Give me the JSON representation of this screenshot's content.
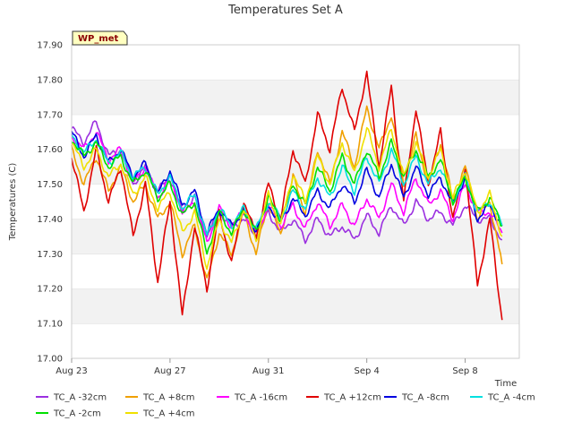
{
  "chart_data": {
    "type": "line",
    "title": "Temperatures Set A",
    "xlabel": "Time",
    "ylabel": "Temperatures (C)",
    "ylim": [
      17.0,
      17.9
    ],
    "yticks": [
      17.0,
      17.1,
      17.2,
      17.3,
      17.4,
      17.5,
      17.6,
      17.7,
      17.8,
      17.9
    ],
    "ytick_labels": [
      "17.00",
      "17.10",
      "17.20",
      "17.30",
      "17.40",
      "17.50",
      "17.60",
      "17.70",
      "17.80",
      "17.90"
    ],
    "xlim": [
      0,
      18.2
    ],
    "xticks": [
      0,
      4,
      8,
      12,
      16
    ],
    "xtick_labels": [
      "Aug 23",
      "Aug 27",
      "Aug 31",
      "Sep 4",
      "Sep 8"
    ],
    "grid": "horizontal bands",
    "badge": "WP_met",
    "legend_position": "bottom",
    "x": [
      0,
      0.5,
      1,
      1.5,
      2,
      2.5,
      3,
      3.5,
      4,
      4.5,
      5,
      5.5,
      6,
      6.5,
      7,
      7.5,
      8,
      8.5,
      9,
      9.5,
      10,
      10.5,
      11,
      11.5,
      12,
      12.5,
      13,
      13.5,
      14,
      14.5,
      15,
      15.5,
      16,
      16.5,
      17,
      17.5
    ],
    "series": [
      {
        "name": "TC_A -32cm",
        "color": "#9b30e0",
        "values": [
          17.66,
          17.62,
          17.68,
          17.58,
          17.6,
          17.5,
          17.55,
          17.48,
          17.52,
          17.42,
          17.46,
          17.35,
          17.42,
          17.38,
          17.4,
          17.35,
          17.42,
          17.36,
          17.4,
          17.34,
          17.4,
          17.35,
          17.38,
          17.34,
          17.41,
          17.36,
          17.44,
          17.38,
          17.45,
          17.4,
          17.42,
          17.38,
          17.44,
          17.4,
          17.4,
          17.34
        ]
      },
      {
        "name": "TC_A +8cm",
        "color": "#f0a000",
        "values": [
          17.6,
          17.5,
          17.58,
          17.48,
          17.55,
          17.45,
          17.5,
          17.4,
          17.45,
          17.3,
          17.38,
          17.22,
          17.36,
          17.3,
          17.42,
          17.3,
          17.45,
          17.35,
          17.52,
          17.42,
          17.6,
          17.5,
          17.65,
          17.55,
          17.72,
          17.6,
          17.7,
          17.5,
          17.64,
          17.5,
          17.62,
          17.45,
          17.55,
          17.4,
          17.45,
          17.27
        ]
      },
      {
        "name": "TC_A -16cm",
        "color": "#ff00ff",
        "values": [
          17.64,
          17.6,
          17.65,
          17.57,
          17.6,
          17.5,
          17.55,
          17.46,
          17.52,
          17.42,
          17.45,
          17.33,
          17.43,
          17.38,
          17.42,
          17.36,
          17.44,
          17.38,
          17.44,
          17.37,
          17.45,
          17.38,
          17.44,
          17.38,
          17.46,
          17.4,
          17.5,
          17.42,
          17.52,
          17.44,
          17.48,
          17.4,
          17.5,
          17.42,
          17.42,
          17.36
        ]
      },
      {
        "name": "TC_A +12cm",
        "color": "#e00000",
        "values": [
          17.58,
          17.42,
          17.6,
          17.45,
          17.55,
          17.35,
          17.5,
          17.22,
          17.45,
          17.12,
          17.38,
          17.2,
          17.42,
          17.27,
          17.45,
          17.35,
          17.5,
          17.4,
          17.6,
          17.5,
          17.7,
          17.6,
          17.78,
          17.65,
          17.82,
          17.55,
          17.78,
          17.45,
          17.72,
          17.5,
          17.65,
          17.4,
          17.55,
          17.21,
          17.4,
          17.11
        ]
      },
      {
        "name": "TC_A -8cm",
        "color": "#0000e0",
        "values": [
          17.65,
          17.58,
          17.64,
          17.56,
          17.6,
          17.52,
          17.56,
          17.47,
          17.54,
          17.44,
          17.48,
          17.36,
          17.43,
          17.38,
          17.42,
          17.37,
          17.44,
          17.39,
          17.46,
          17.41,
          17.48,
          17.43,
          17.5,
          17.45,
          17.54,
          17.46,
          17.56,
          17.46,
          17.55,
          17.47,
          17.52,
          17.44,
          17.52,
          17.4,
          17.44,
          17.38
        ]
      },
      {
        "name": "TC_A -4cm",
        "color": "#00e0e0",
        "values": [
          17.64,
          17.59,
          17.63,
          17.56,
          17.59,
          17.52,
          17.55,
          17.47,
          17.52,
          17.43,
          17.47,
          17.35,
          17.43,
          17.38,
          17.43,
          17.37,
          17.45,
          17.4,
          17.48,
          17.43,
          17.52,
          17.46,
          17.55,
          17.48,
          17.58,
          17.5,
          17.6,
          17.5,
          17.58,
          17.5,
          17.55,
          17.45,
          17.52,
          17.42,
          17.45,
          17.38
        ]
      },
      {
        "name": "TC_A -2cm",
        "color": "#00e000",
        "values": [
          17.63,
          17.58,
          17.62,
          17.55,
          17.58,
          17.5,
          17.54,
          17.46,
          17.5,
          17.41,
          17.45,
          17.3,
          17.42,
          17.36,
          17.43,
          17.36,
          17.46,
          17.4,
          17.5,
          17.44,
          17.55,
          17.48,
          17.58,
          17.5,
          17.6,
          17.52,
          17.62,
          17.52,
          17.6,
          17.52,
          17.57,
          17.45,
          17.52,
          17.42,
          17.46,
          17.38
        ]
      },
      {
        "name": "TC_A +4cm",
        "color": "#f0e000",
        "values": [
          17.62,
          17.55,
          17.6,
          17.52,
          17.56,
          17.47,
          17.52,
          17.43,
          17.48,
          17.36,
          17.42,
          17.26,
          17.4,
          17.33,
          17.43,
          17.34,
          17.47,
          17.38,
          17.53,
          17.45,
          17.58,
          17.5,
          17.62,
          17.53,
          17.66,
          17.55,
          17.66,
          17.52,
          17.62,
          17.52,
          17.6,
          17.46,
          17.54,
          17.42,
          17.47,
          17.35
        ]
      }
    ]
  }
}
